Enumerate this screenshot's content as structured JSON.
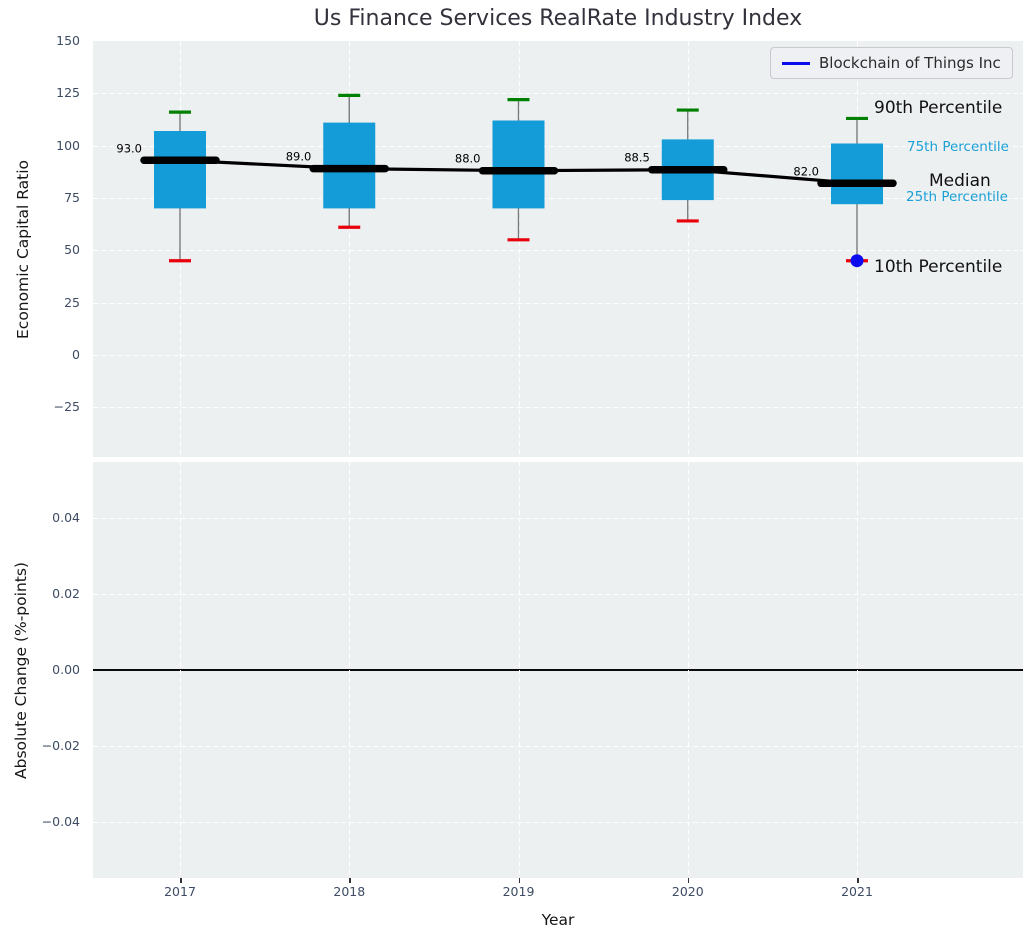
{
  "title": "Us Finance Services RealRate Industry Index",
  "legend": {
    "label": "Blockchain of Things Inc"
  },
  "axes": {
    "xlabel": "Year",
    "xticks": [
      "2017",
      "2018",
      "2019",
      "2020",
      "2021"
    ],
    "top": {
      "ylabel": "Economic Capital Ratio",
      "yticks": [
        {
          "label": "150",
          "value": 150
        },
        {
          "label": "125",
          "value": 125
        },
        {
          "label": "100",
          "value": 100
        },
        {
          "label": "75",
          "value": 75
        },
        {
          "label": "50",
          "value": 50
        },
        {
          "label": "25",
          "value": 25
        },
        {
          "label": "0",
          "value": 0
        },
        {
          "label": "−25",
          "value": -25
        }
      ]
    },
    "bottom": {
      "ylabel": "Absolute Change (%-points)",
      "yticks": [
        {
          "label": "0.04",
          "value": 0.04
        },
        {
          "label": "0.02",
          "value": 0.02
        },
        {
          "label": "0.00",
          "value": 0.0
        },
        {
          "label": "−0.02",
          "value": -0.02
        },
        {
          "label": "−0.04",
          "value": -0.04
        }
      ],
      "zero_line": true
    }
  },
  "annotations": {
    "p90": "90th Percentile",
    "p75": "75th Percentile",
    "median": "Median",
    "p25": "25th Percentile",
    "p10": "10th Percentile"
  },
  "colors": {
    "box": "#149cd8",
    "p90_cap": "#008000",
    "p10_cap": "#e8000b",
    "median_line": "#000000",
    "company_blue": "#0b0bf0",
    "percentile_text_cyan": "#1ba0d8",
    "axes_background": "#ecf0f1"
  },
  "chart_data": {
    "type": "bar",
    "subtype": "percentile-band-boxes-with-median-line",
    "title": "Us Finance Services RealRate Industry Index",
    "xlabel": "Year",
    "categories": [
      2017,
      2018,
      2019,
      2020,
      2021
    ],
    "panels": [
      {
        "ylabel": "Economic Capital Ratio",
        "ylim": [
          -48.8,
          150
        ],
        "grid": true,
        "series": [
          {
            "name": "90th Percentile",
            "values": [
              116,
              124,
              122,
              117,
              113
            ]
          },
          {
            "name": "75th Percentile",
            "values": [
              107,
              111,
              112,
              103,
              101
            ]
          },
          {
            "name": "Median",
            "values": [
              93.0,
              89.0,
              88.0,
              88.5,
              82.0
            ]
          },
          {
            "name": "25th Percentile",
            "values": [
              70,
              70,
              70,
              74,
              72
            ]
          },
          {
            "name": "10th Percentile",
            "values": [
              45,
              61,
              55,
              64,
              45
            ]
          },
          {
            "name": "Blockchain of Things Inc",
            "values": [
              null,
              null,
              null,
              null,
              45
            ]
          }
        ],
        "median_labels": [
          "93.0",
          "89.0",
          "88.0",
          "88.5",
          "82.0"
        ],
        "legend_position": "upper right"
      },
      {
        "ylabel": "Absolute Change (%-points)",
        "ylim": [
          -0.0547,
          0.0547
        ],
        "grid": true,
        "series": [],
        "zero_line": 0.0
      }
    ]
  }
}
